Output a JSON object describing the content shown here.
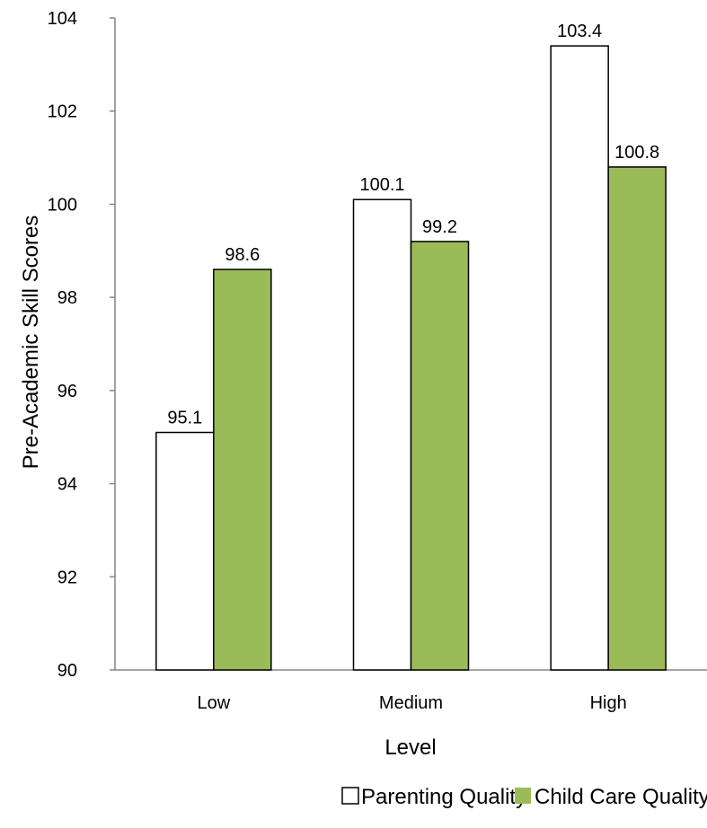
{
  "chart_data": {
    "type": "bar",
    "title": "",
    "xlabel": "Level",
    "ylabel": "Pre-Academic Skill Scores",
    "categories": [
      "Low",
      "Medium",
      "High"
    ],
    "ylim": [
      90,
      104
    ],
    "yticks": [
      90,
      92,
      94,
      96,
      98,
      100,
      102,
      104
    ],
    "grid": false,
    "legend_position": "bottom",
    "series": [
      {
        "name": "Parenting Quality",
        "values": [
          95.1,
          100.1,
          103.4
        ],
        "color": "#ffffff",
        "edge_color": "#000000"
      },
      {
        "name": "Child Care Quality",
        "values": [
          98.6,
          99.2,
          100.8
        ],
        "color": "#9bbb59",
        "edge_color": "#000000"
      }
    ]
  }
}
